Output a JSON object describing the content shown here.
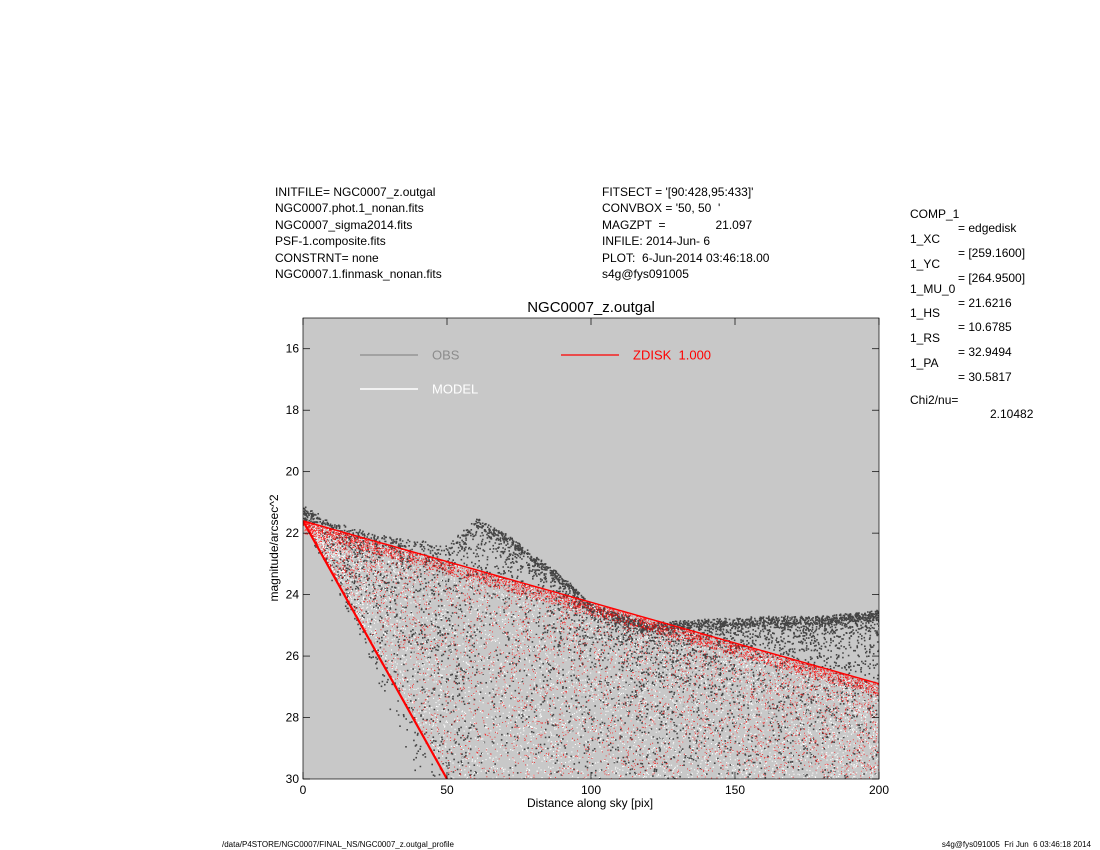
{
  "header": {
    "left": [
      "INITFILE= NGC0007_z.outgal",
      "NGC0007.phot.1_nonan.fits",
      "NGC0007_sigma2014.fits",
      "PSF-1.composite.fits",
      "CONSTRNT= none",
      "NGC0007.1.finmask_nonan.fits"
    ],
    "middle": [
      "FITSECT = '[90:428,95:433]'",
      "CONVBOX = '50, 50  '",
      "MAGZPT  =               21.097",
      "INFILE: 2014-Jun- 6",
      "PLOT:  6-Jun-2014 03:46:18.00",
      "s4g@fys091005"
    ]
  },
  "params": [
    {
      "key": "COMP_1",
      "value": "= edgedisk"
    },
    {
      "key": "1_XC",
      "value": "= [259.1600]"
    },
    {
      "key": "1_YC",
      "value": "= [264.9500]"
    },
    {
      "key": "1_MU_0",
      "value": "= 21.6216"
    },
    {
      "key": "1_HS",
      "value": "= 10.6785"
    },
    {
      "key": "1_RS",
      "value": "= 32.9494"
    },
    {
      "key": "1_PA",
      "value": "= 30.5817"
    }
  ],
  "chi": {
    "key": "Chi2/nu=",
    "value": "2.10482"
  },
  "footer": {
    "left": "/data/P4STORE/NGC0007/FINAL_NS/NGC0007_z.outgal_profile",
    "right": "s4g@fys091005  Fri Jun  6 03:46:18 2014"
  },
  "colors": {
    "panel_bg": "#c8c8c8",
    "obs": "#444444",
    "model": "#ffffff",
    "zdisk": "#ff0000",
    "obs_legend": "#8c8c8c"
  },
  "chart_data": {
    "type": "scatter",
    "title": "NGC0007_z.outgal",
    "xlabel": "Distance along sky [pix]",
    "ylabel": "magnitude/arcsec^2",
    "xlim": [
      0,
      200
    ],
    "ylim": [
      30,
      15
    ],
    "xticks": [
      0,
      50,
      100,
      150,
      200
    ],
    "yticks": [
      16,
      18,
      20,
      22,
      24,
      26,
      28,
      30
    ],
    "legend": [
      {
        "name": "OBS",
        "color": "#8c8c8c"
      },
      {
        "name": "MODEL",
        "color": "#ffffff"
      },
      {
        "name": "ZDISK  1.000",
        "color": "#ff0000"
      }
    ],
    "series": [
      {
        "name": "OBS",
        "upper_envelope": {
          "x": [
            0,
            10,
            20,
            30,
            40,
            50,
            60,
            70,
            80,
            90,
            100,
            120,
            140,
            160,
            180,
            200
          ],
          "y": [
            21.2,
            21.7,
            22.0,
            22.2,
            22.3,
            22.5,
            21.6,
            22.1,
            22.8,
            23.5,
            24.4,
            25.0,
            24.9,
            24.8,
            24.8,
            24.6
          ]
        },
        "lower_envelope": {
          "x": [
            0,
            10,
            20,
            30,
            40,
            50
          ],
          "y": [
            21.6,
            23.5,
            25.5,
            27.6,
            30.0,
            30.0
          ]
        }
      },
      {
        "name": "MODEL",
        "upper_envelope": {
          "x": [
            0,
            200
          ],
          "y": [
            21.6,
            27.0
          ]
        },
        "lower_envelope": {
          "x": [
            0,
            50
          ],
          "y": [
            21.6,
            30.0
          ]
        }
      },
      {
        "name": "ZDISK  1.000",
        "upper_envelope": {
          "x": [
            0,
            200
          ],
          "y": [
            21.6,
            26.9
          ]
        },
        "lower_envelope": {
          "x": [
            0,
            50
          ],
          "y": [
            21.6,
            30.0
          ]
        }
      }
    ]
  }
}
